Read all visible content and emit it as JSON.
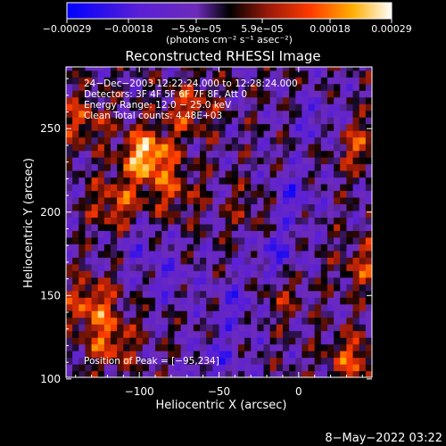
{
  "chart_data": {
    "type": "heatmap",
    "title": "Reconstructed RHESSI Image",
    "xlabel": "Heliocentric X (arcsec)",
    "ylabel": "Heliocentric Y (arcsec)",
    "xlim": [
      -146,
      46
    ],
    "ylim": [
      101,
      287
    ],
    "xticks": [
      -100,
      -50,
      0
    ],
    "yticks": [
      100,
      150,
      200,
      250
    ],
    "xtick_labels": [
      "−100",
      "−50",
      "0"
    ],
    "ytick_labels": [
      "100",
      "150",
      "200",
      "250"
    ],
    "colorbar": {
      "min": -0.00029,
      "max": 0.00029,
      "ticks": [
        -0.00029,
        -0.00018,
        -5.9e-05,
        5.9e-05,
        0.00018,
        0.00029
      ],
      "tick_labels": [
        "−0.00029",
        "−0.00018",
        "−5.9e−05",
        "5.9e−05",
        "0.00018",
        "0.00029"
      ],
      "unit": "(photons cm⁻² s⁻¹ asec⁻²)",
      "colors": [
        "#0000ff",
        "#5a1fd6",
        "#6d2bbb",
        "#000000",
        "#9a1a0a",
        "#ff3a00",
        "#ffae00",
        "#ffffff"
      ]
    },
    "annotations": [
      "24−Dec−2003 12:22:24.000 to 12:28:24.000",
      "Detectors: 3F 4F 5F 6F 7F 8F, Att 0",
      "Energy Range: 12.0 − 25.0 keV",
      "Clean       Total counts: 4.48E+03"
    ],
    "peak_label": "Position of Peak = [−95,234]",
    "peak": [
      -95,
      234
    ],
    "bright_regions": [
      {
        "x": -95,
        "y": 234,
        "value": 0.00029
      },
      {
        "x": -115,
        "y": 205,
        "value": 0.00016
      },
      {
        "x": -135,
        "y": 255,
        "value": 0.00014
      },
      {
        "x": -68,
        "y": 262,
        "value": 0.00015
      },
      {
        "x": -78,
        "y": 212,
        "value": 0.00012
      },
      {
        "x": -130,
        "y": 145,
        "value": 0.00018
      },
      {
        "x": -118,
        "y": 122,
        "value": 0.00016
      },
      {
        "x": -30,
        "y": 202,
        "value": 8e-05
      },
      {
        "x": 38,
        "y": 240,
        "value": 0.00014
      },
      {
        "x": 42,
        "y": 168,
        "value": 0.00013
      },
      {
        "x": 34,
        "y": 112,
        "value": 0.00016
      },
      {
        "x": -12,
        "y": 150,
        "value": 9e-05
      }
    ],
    "dim_regions": [
      {
        "x": -5,
        "y": 210,
        "value": -0.00012
      },
      {
        "x": -15,
        "y": 175,
        "value": -0.00013
      },
      {
        "x": -38,
        "y": 145,
        "value": -0.00011
      },
      {
        "x": -50,
        "y": 112,
        "value": -0.0001
      },
      {
        "x": -80,
        "y": 160,
        "value": -8e-05
      },
      {
        "x": 12,
        "y": 255,
        "value": -9e-05
      },
      {
        "x": -100,
        "y": 180,
        "value": -7e-05
      }
    ]
  },
  "footer": {
    "timestamp": "8−May−2022 03:22"
  }
}
